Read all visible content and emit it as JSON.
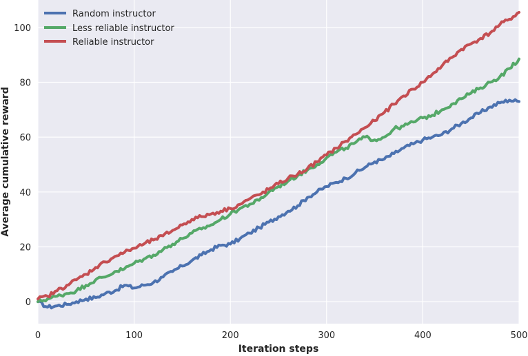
{
  "chart_data": {
    "type": "line",
    "xlabel": "Iteration steps",
    "ylabel": "Average cumulative reward",
    "xlim": [
      0,
      500
    ],
    "ylim": [
      -8,
      110
    ],
    "xticks": [
      0,
      100,
      200,
      300,
      400,
      500
    ],
    "yticks": [
      0,
      20,
      40,
      60,
      80,
      100
    ],
    "grid": true,
    "legend_position": "top-left",
    "series": [
      {
        "name": "Random instructor",
        "color": "#4c72b0",
        "x": [
          0,
          10,
          20,
          30,
          40,
          50,
          60,
          70,
          80,
          90,
          100,
          110,
          120,
          130,
          140,
          150,
          160,
          170,
          180,
          190,
          200,
          210,
          220,
          230,
          240,
          250,
          260,
          270,
          280,
          290,
          300,
          310,
          320,
          330,
          340,
          350,
          360,
          370,
          380,
          390,
          400,
          410,
          420,
          430,
          440,
          450,
          460,
          470,
          480,
          490,
          500
        ],
        "y": [
          0,
          -2,
          -1.5,
          -1,
          0,
          1,
          1.5,
          3,
          4,
          6,
          5,
          6,
          7,
          9,
          11,
          13,
          15,
          17,
          19,
          20.5,
          21,
          23,
          25,
          27,
          29,
          31,
          33,
          35,
          38,
          40,
          42,
          43.5,
          45,
          47,
          49,
          51,
          52,
          54,
          56,
          57.5,
          59,
          60,
          61,
          63,
          65,
          67,
          69,
          71,
          72.5,
          73.5,
          73
        ]
      },
      {
        "name": "Less reliable instructor",
        "color": "#55a868",
        "x": [
          0,
          10,
          20,
          30,
          40,
          50,
          60,
          70,
          80,
          90,
          100,
          110,
          120,
          130,
          140,
          150,
          160,
          170,
          180,
          190,
          200,
          210,
          220,
          230,
          240,
          250,
          260,
          270,
          280,
          290,
          300,
          310,
          320,
          330,
          340,
          350,
          360,
          370,
          380,
          390,
          400,
          410,
          420,
          430,
          440,
          450,
          460,
          470,
          480,
          490,
          500
        ],
        "y": [
          0,
          1,
          2,
          3,
          4,
          6,
          8,
          9,
          11,
          12,
          14,
          15.5,
          17,
          19,
          21,
          23,
          25,
          26.5,
          28,
          30,
          32,
          34,
          35.5,
          37,
          40,
          42,
          44,
          46,
          48,
          50,
          52.5,
          54.5,
          56,
          58,
          60,
          59,
          60,
          63,
          64,
          65.5,
          67,
          68,
          70,
          72,
          74,
          76,
          78,
          80,
          82,
          85,
          88.5
        ]
      },
      {
        "name": "Reliable instructor",
        "color": "#c44e52",
        "x": [
          0,
          10,
          20,
          30,
          40,
          50,
          60,
          70,
          80,
          90,
          100,
          110,
          120,
          130,
          140,
          150,
          160,
          170,
          180,
          190,
          200,
          210,
          220,
          230,
          240,
          250,
          260,
          270,
          280,
          290,
          300,
          310,
          320,
          330,
          340,
          350,
          360,
          370,
          380,
          390,
          400,
          410,
          420,
          430,
          440,
          450,
          460,
          470,
          480,
          490,
          500
        ],
        "y": [
          1,
          2,
          4,
          6,
          8,
          10,
          12.5,
          14.5,
          16.5,
          18,
          19.5,
          21,
          22.5,
          24,
          26,
          28,
          30,
          31,
          32,
          33,
          34,
          35.5,
          37.5,
          39,
          41,
          43,
          45,
          46.5,
          48.5,
          51,
          53.5,
          56,
          58.5,
          61,
          63.5,
          66,
          69,
          72,
          75,
          77.5,
          80,
          83,
          86,
          89,
          92,
          94,
          96,
          98,
          101,
          103,
          105.5
        ]
      }
    ]
  }
}
